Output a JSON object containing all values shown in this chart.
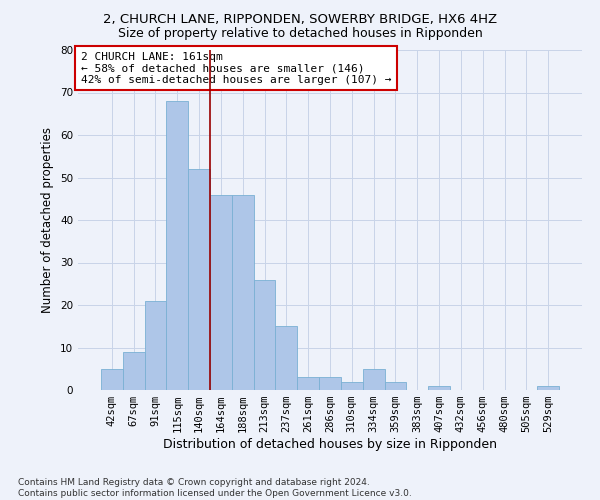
{
  "title_line1": "2, CHURCH LANE, RIPPONDEN, SOWERBY BRIDGE, HX6 4HZ",
  "title_line2": "Size of property relative to detached houses in Ripponden",
  "xlabel": "Distribution of detached houses by size in Ripponden",
  "ylabel": "Number of detached properties",
  "bar_values": [
    5,
    9,
    21,
    68,
    52,
    46,
    46,
    26,
    15,
    3,
    3,
    2,
    5,
    2,
    0,
    1,
    0,
    0,
    0,
    0,
    1
  ],
  "bin_labels": [
    "42sqm",
    "67sqm",
    "91sqm",
    "115sqm",
    "140sqm",
    "164sqm",
    "188sqm",
    "213sqm",
    "237sqm",
    "261sqm",
    "286sqm",
    "310sqm",
    "334sqm",
    "359sqm",
    "383sqm",
    "407sqm",
    "432sqm",
    "456sqm",
    "480sqm",
    "505sqm",
    "529sqm"
  ],
  "bar_color": "#aec6e8",
  "bar_edge_color": "#7ab0d4",
  "grid_color": "#c8d4e8",
  "background_color": "#eef2fa",
  "vline_x": 4.5,
  "vline_color": "#990000",
  "annotation_text": "2 CHURCH LANE: 161sqm\n← 58% of detached houses are smaller (146)\n42% of semi-detached houses are larger (107) →",
  "annotation_box_color": "white",
  "annotation_box_edge": "#cc0000",
  "ylim": [
    0,
    80
  ],
  "yticks": [
    0,
    10,
    20,
    30,
    40,
    50,
    60,
    70,
    80
  ],
  "footnote": "Contains HM Land Registry data © Crown copyright and database right 2024.\nContains public sector information licensed under the Open Government Licence v3.0.",
  "title_fontsize": 9.5,
  "subtitle_fontsize": 9,
  "xlabel_fontsize": 9,
  "ylabel_fontsize": 8.5,
  "tick_fontsize": 7.5,
  "annotation_fontsize": 8,
  "footnote_fontsize": 6.5
}
